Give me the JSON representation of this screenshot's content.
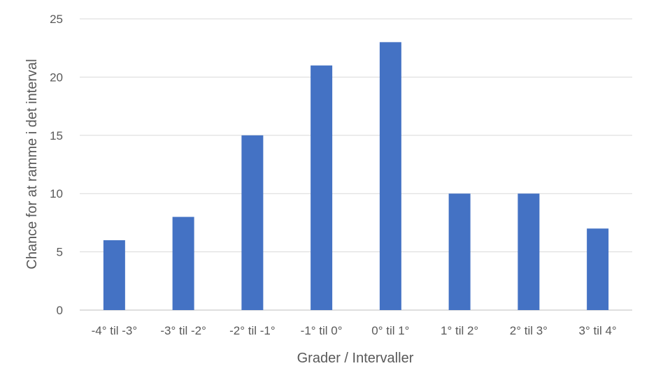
{
  "chart_data": {
    "type": "bar",
    "categories": [
      "-4° til -3°",
      "-3° til -2°",
      "-2° til -1°",
      "-1° til 0°",
      "0° til 1°",
      "1° til 2°",
      "2° til 3°",
      "3° til 4°"
    ],
    "values": [
      6,
      8,
      15,
      21,
      23,
      10,
      10,
      7
    ],
    "yticks": [
      "0",
      "5",
      "10",
      "15",
      "20",
      "25"
    ],
    "xlabel": "Grader / Intervaller",
    "ylabel": "Chance for at ramme i det interval",
    "ylim": [
      0,
      25
    ],
    "grid": true,
    "bar_color": "#4472c4"
  }
}
